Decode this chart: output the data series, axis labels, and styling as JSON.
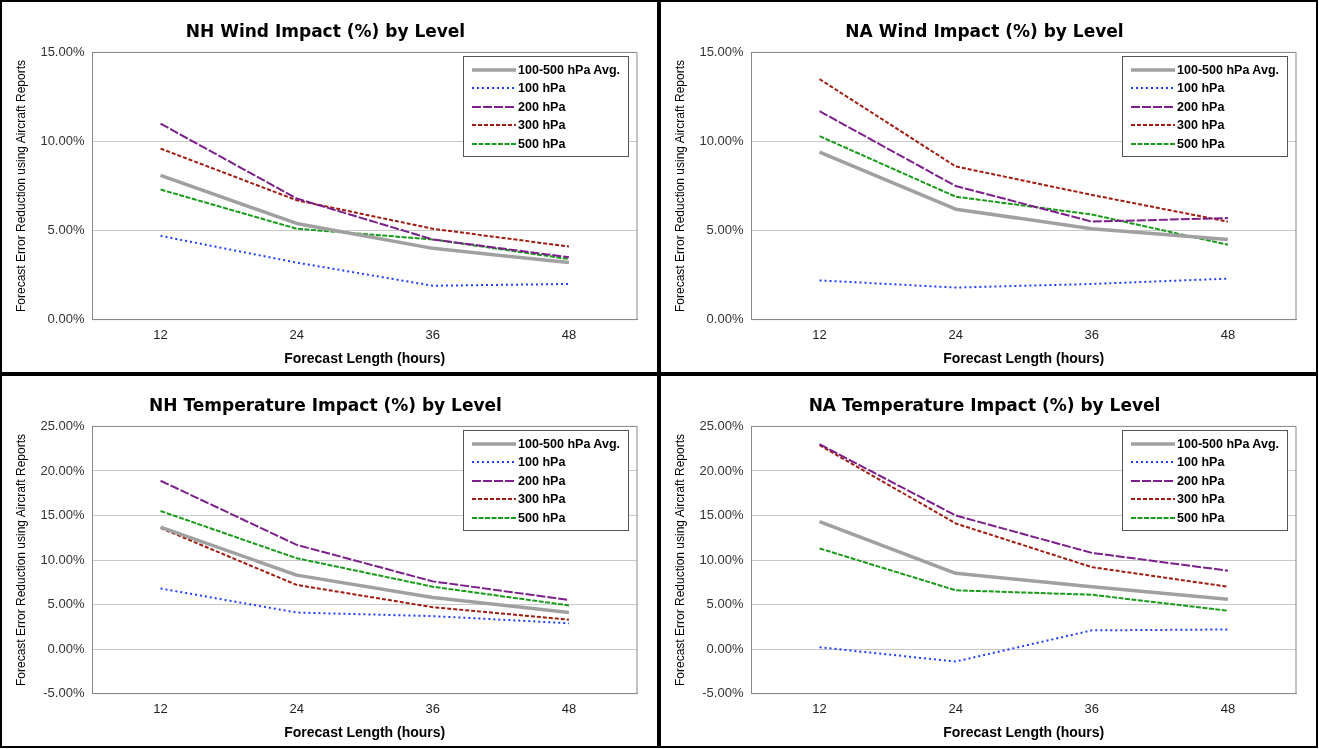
{
  "chart_data": [
    {
      "type": "line",
      "title": "NH Wind Impact (%) by Level",
      "xlabel": "Forecast Length (hours)",
      "ylabel": "Forecast Error Reduction using Aircraft Reports",
      "categories": [
        "12",
        "24",
        "36",
        "48"
      ],
      "ylim": [
        0,
        15
      ],
      "yticks": [
        {
          "value": 0,
          "label": "0.00%"
        },
        {
          "value": 5,
          "label": "5.00%"
        },
        {
          "value": 10,
          "label": "10.00%"
        },
        {
          "value": 15,
          "label": "15.00%"
        }
      ],
      "grid": "y",
      "legend": "top right",
      "series": [
        {
          "name": "100-500 hPa Avg.",
          "color": "#a0a0a0",
          "line_style": "solid",
          "values": [
            8.1,
            5.4,
            4.0,
            3.2
          ]
        },
        {
          "name": "100 hPa",
          "color": "#1f3fff",
          "line_style": "dotted",
          "values": [
            4.7,
            3.2,
            1.9,
            2.0
          ]
        },
        {
          "name": "200 hPa",
          "color": "#7b1f8a",
          "line_style": "dashed",
          "values": [
            11.0,
            6.8,
            4.5,
            3.5
          ]
        },
        {
          "name": "300 hPa",
          "color": "#a01c10",
          "line_style": "dashed",
          "values": [
            9.6,
            6.7,
            5.1,
            4.1
          ]
        },
        {
          "name": "500 hPa",
          "color": "#1a9a1a",
          "line_style": "dashed",
          "values": [
            7.3,
            5.1,
            4.5,
            3.4
          ]
        }
      ]
    },
    {
      "type": "line",
      "title": "NA Wind Impact (%) by Level",
      "xlabel": "Forecast Length (hours)",
      "ylabel": "Forecast Error Reduction using Aircraft Reports",
      "categories": [
        "12",
        "24",
        "36",
        "48"
      ],
      "ylim": [
        0,
        15
      ],
      "yticks": [
        {
          "value": 0,
          "label": "0.00%"
        },
        {
          "value": 5,
          "label": "5.00%"
        },
        {
          "value": 10,
          "label": "10.00%"
        },
        {
          "value": 15,
          "label": "15.00%"
        }
      ],
      "grid": "y",
      "legend": "top right",
      "series": [
        {
          "name": "100-500 hPa Avg.",
          "color": "#a0a0a0",
          "line_style": "solid",
          "values": [
            9.4,
            6.2,
            5.1,
            4.5
          ]
        },
        {
          "name": "100 hPa",
          "color": "#1f3fff",
          "line_style": "dotted",
          "values": [
            2.2,
            1.8,
            2.0,
            2.3
          ]
        },
        {
          "name": "200 hPa",
          "color": "#7b1f8a",
          "line_style": "dashed",
          "values": [
            11.7,
            7.5,
            5.5,
            5.7
          ]
        },
        {
          "name": "300 hPa",
          "color": "#a01c10",
          "line_style": "dashed",
          "values": [
            13.5,
            8.6,
            7.0,
            5.5
          ]
        },
        {
          "name": "500 hPa",
          "color": "#1a9a1a",
          "line_style": "dashed",
          "values": [
            10.3,
            6.9,
            5.9,
            4.2
          ]
        }
      ]
    },
    {
      "type": "line",
      "title": "NH Temperature Impact (%) by Level",
      "xlabel": "Forecast Length (hours)",
      "ylabel": "Forecast Error Reduction using Aircraft Reports",
      "categories": [
        "12",
        "24",
        "36",
        "48"
      ],
      "ylim": [
        -5,
        25
      ],
      "yticks": [
        {
          "value": -5,
          "label": "-5.00%"
        },
        {
          "value": 0,
          "label": "0.00%"
        },
        {
          "value": 5,
          "label": "5.00%"
        },
        {
          "value": 10,
          "label": "10.00%"
        },
        {
          "value": 15,
          "label": "15.00%"
        },
        {
          "value": 20,
          "label": "20.00%"
        },
        {
          "value": 25,
          "label": "25.00%"
        }
      ],
      "grid": "y",
      "legend": "top right",
      "series": [
        {
          "name": "100-500 hPa Avg.",
          "color": "#a0a0a0",
          "line_style": "solid",
          "values": [
            13.7,
            8.3,
            5.8,
            4.1
          ]
        },
        {
          "name": "100 hPa",
          "color": "#1f3fff",
          "line_style": "dotted",
          "values": [
            6.8,
            4.1,
            3.7,
            2.9
          ]
        },
        {
          "name": "200 hPa",
          "color": "#7b1f8a",
          "line_style": "dashed",
          "values": [
            18.9,
            11.7,
            7.6,
            5.5
          ]
        },
        {
          "name": "300 hPa",
          "color": "#a01c10",
          "line_style": "dashed",
          "values": [
            13.6,
            7.2,
            4.7,
            3.3
          ]
        },
        {
          "name": "500 hPa",
          "color": "#1a9a1a",
          "line_style": "dashed",
          "values": [
            15.5,
            10.2,
            7.0,
            4.9
          ]
        }
      ]
    },
    {
      "type": "line",
      "title": "NA Temperature Impact (%) by Level",
      "xlabel": "Forecast Length (hours)",
      "ylabel": "Forecast Error Reduction using Aircraft Reports",
      "categories": [
        "12",
        "24",
        "36",
        "48"
      ],
      "ylim": [
        -5,
        25
      ],
      "yticks": [
        {
          "value": -5,
          "label": "-5.00%"
        },
        {
          "value": 0,
          "label": "0.00%"
        },
        {
          "value": 5,
          "label": "5.00%"
        },
        {
          "value": 10,
          "label": "10.00%"
        },
        {
          "value": 15,
          "label": "15.00%"
        },
        {
          "value": 20,
          "label": "20.00%"
        },
        {
          "value": 25,
          "label": "25.00%"
        }
      ],
      "grid": "y",
      "legend": "top right",
      "series": [
        {
          "name": "100-500 hPa Avg.",
          "color": "#a0a0a0",
          "line_style": "solid",
          "values": [
            14.3,
            8.5,
            7.0,
            5.6
          ]
        },
        {
          "name": "100 hPa",
          "color": "#1f3fff",
          "line_style": "dotted",
          "values": [
            0.2,
            -1.4,
            2.1,
            2.2
          ]
        },
        {
          "name": "200 hPa",
          "color": "#7b1f8a",
          "line_style": "dashed",
          "values": [
            23.0,
            15.0,
            10.8,
            8.8
          ]
        },
        {
          "name": "300 hPa",
          "color": "#a01c10",
          "line_style": "dashed",
          "values": [
            22.9,
            14.1,
            9.2,
            7.0
          ]
        },
        {
          "name": "500 hPa",
          "color": "#1a9a1a",
          "line_style": "dashed",
          "values": [
            11.3,
            6.6,
            6.1,
            4.3
          ]
        }
      ]
    }
  ]
}
